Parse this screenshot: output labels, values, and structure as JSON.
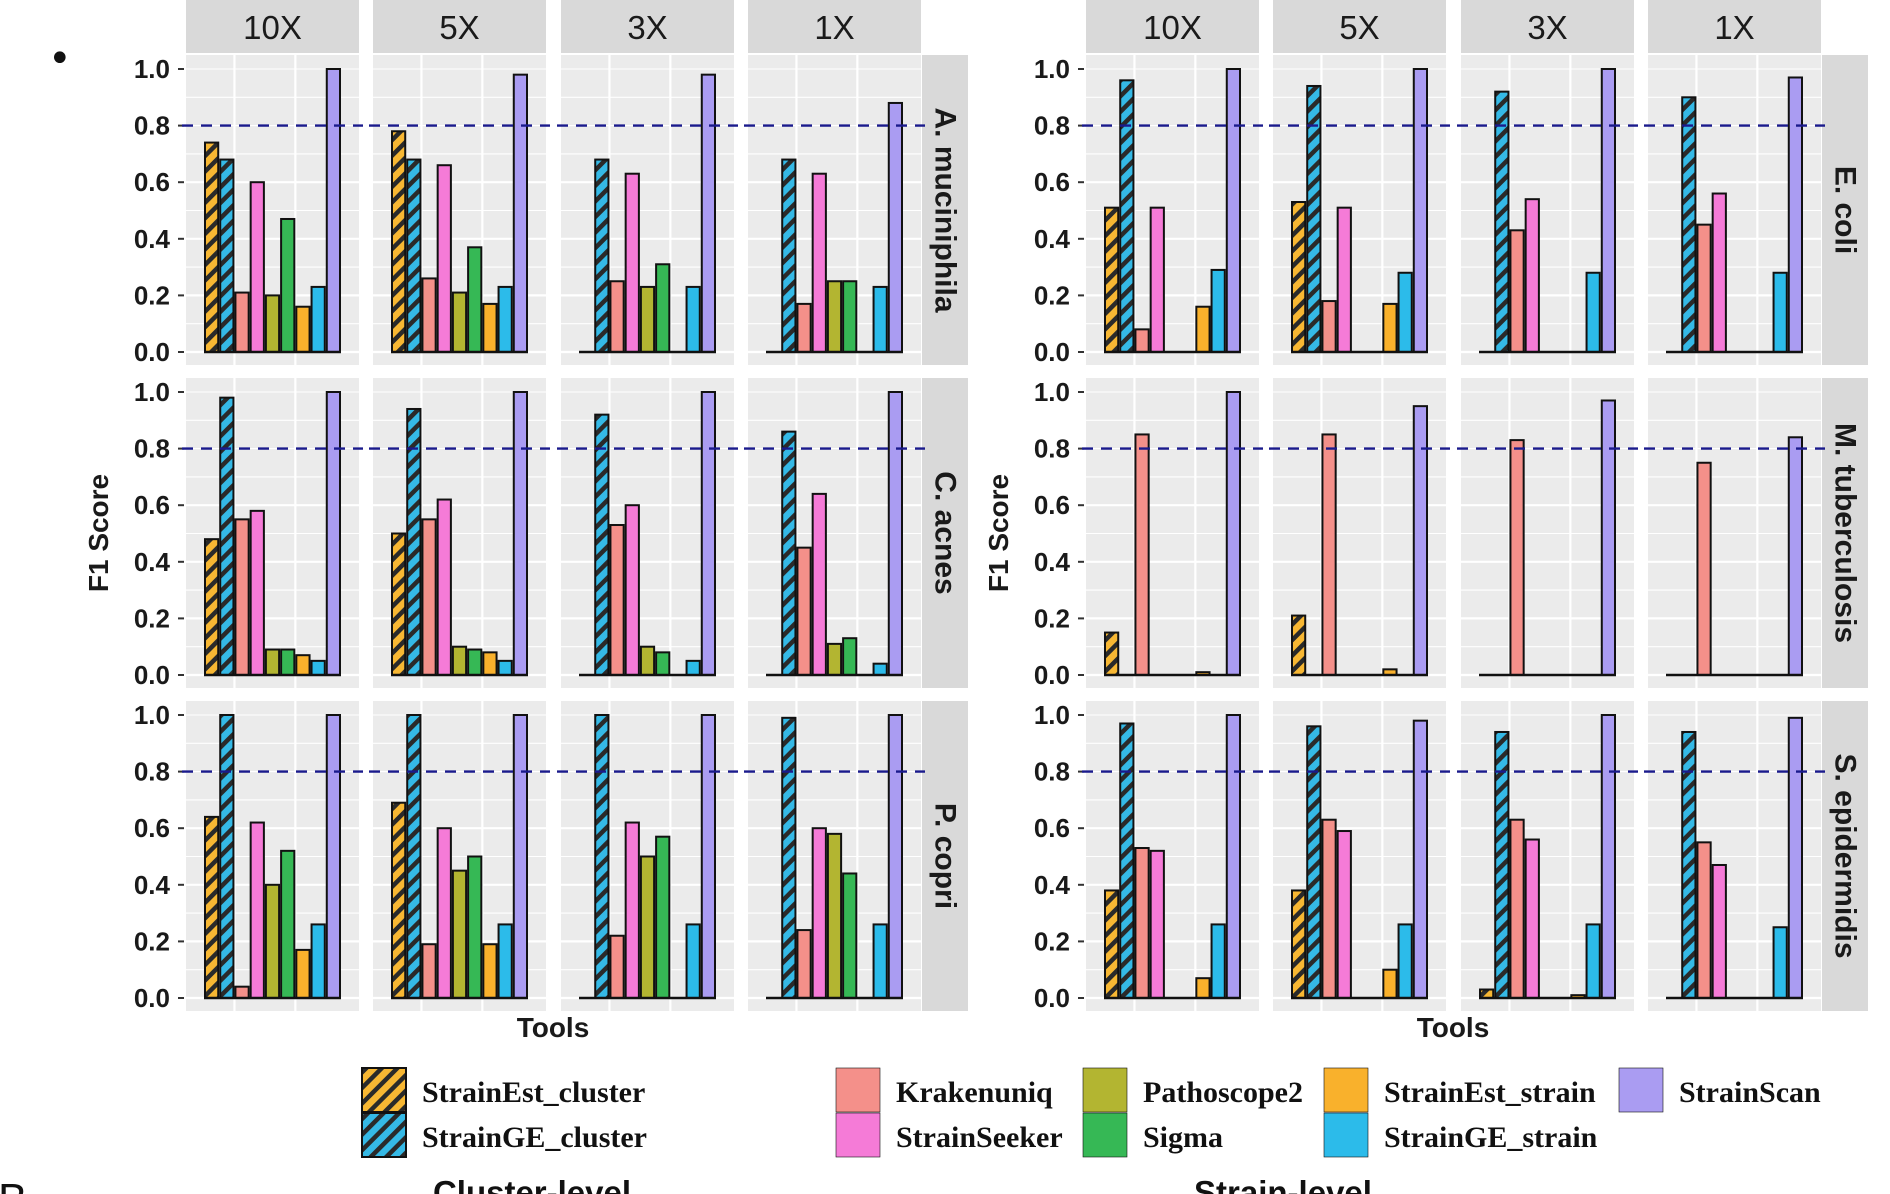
{
  "page": {
    "bullet": "•",
    "panel_label": "B",
    "section_labels": [
      "Cluster-level",
      "Strain-level"
    ]
  },
  "colors": {
    "panel_bg": "#ebebeb",
    "strip_bg": "#d9d9d9",
    "grid": "#ffffff",
    "threshold": "#1a1a8c"
  },
  "chart_data": [
    {
      "type": "bar",
      "id": "cluster-level",
      "level_label": "Cluster-level",
      "ylabel": "F1 Score",
      "xlabel": "Tools",
      "ylim": [
        0,
        1
      ],
      "yticks": [
        "0.0",
        "0.2",
        "0.4",
        "0.6",
        "0.8",
        "1.0"
      ],
      "threshold": 0.8,
      "coverages": [
        "10X",
        "5X",
        "3X",
        "1X"
      ],
      "species": [
        "A. muciniphila",
        "C. acnes",
        "P. copri"
      ],
      "tools": [
        "StrainEst_cluster",
        "StrainGE_cluster",
        "Krakenuniq",
        "StrainSeeker",
        "Pathoscope2",
        "Sigma",
        "StrainEst_strain",
        "StrainGE_strain",
        "StrainScan"
      ],
      "values": [
        [
          [
            0.74,
            0.68,
            0.21,
            0.6,
            0.2,
            0.47,
            0.16,
            0.23,
            1.0
          ],
          [
            0.78,
            0.68,
            0.26,
            0.66,
            0.21,
            0.37,
            0.17,
            0.23,
            0.98
          ],
          [
            0.0,
            0.68,
            0.25,
            0.63,
            0.23,
            0.31,
            0.0,
            0.23,
            0.98
          ],
          [
            0.0,
            0.68,
            0.17,
            0.63,
            0.25,
            0.25,
            0.0,
            0.23,
            0.88
          ]
        ],
        [
          [
            0.48,
            0.98,
            0.55,
            0.58,
            0.09,
            0.09,
            0.07,
            0.05,
            1.0
          ],
          [
            0.5,
            0.94,
            0.55,
            0.62,
            0.1,
            0.09,
            0.08,
            0.05,
            1.0
          ],
          [
            0.0,
            0.92,
            0.53,
            0.6,
            0.1,
            0.08,
            0.0,
            0.05,
            1.0
          ],
          [
            0.0,
            0.86,
            0.45,
            0.64,
            0.11,
            0.13,
            0.0,
            0.04,
            1.0
          ]
        ],
        [
          [
            0.64,
            1.0,
            0.04,
            0.62,
            0.4,
            0.52,
            0.17,
            0.26,
            1.0
          ],
          [
            0.69,
            1.0,
            0.19,
            0.6,
            0.45,
            0.5,
            0.19,
            0.26,
            1.0
          ],
          [
            0.0,
            1.0,
            0.22,
            0.62,
            0.5,
            0.57,
            0.0,
            0.26,
            1.0
          ],
          [
            0.0,
            0.99,
            0.24,
            0.6,
            0.58,
            0.44,
            0.0,
            0.26,
            1.0
          ]
        ]
      ]
    },
    {
      "type": "bar",
      "id": "strain-level",
      "level_label": "Strain-level",
      "ylabel": "F1 Score",
      "xlabel": "Tools",
      "ylim": [
        0,
        1
      ],
      "yticks": [
        "0.0",
        "0.2",
        "0.4",
        "0.6",
        "0.8",
        "1.0"
      ],
      "threshold": 0.8,
      "coverages": [
        "10X",
        "5X",
        "3X",
        "1X"
      ],
      "species": [
        "E. coli",
        "M. tuberculosis",
        "S. epidermidis"
      ],
      "tools": [
        "StrainEst_cluster",
        "StrainGE_cluster",
        "Krakenuniq",
        "StrainSeeker",
        "Pathoscope2",
        "Sigma",
        "StrainEst_strain",
        "StrainGE_strain",
        "StrainScan"
      ],
      "values": [
        [
          [
            0.51,
            0.96,
            0.08,
            0.51,
            0.0,
            0.0,
            0.16,
            0.29,
            1.0
          ],
          [
            0.53,
            0.94,
            0.18,
            0.51,
            0.0,
            0.0,
            0.17,
            0.28,
            1.0
          ],
          [
            0.0,
            0.92,
            0.43,
            0.54,
            0.0,
            0.0,
            0.0,
            0.28,
            1.0
          ],
          [
            0.0,
            0.9,
            0.45,
            0.56,
            0.0,
            0.0,
            0.0,
            0.28,
            0.97
          ]
        ],
        [
          [
            0.15,
            0.0,
            0.85,
            0.0,
            0.0,
            0.0,
            0.01,
            0.0,
            1.0
          ],
          [
            0.21,
            0.0,
            0.85,
            0.0,
            0.0,
            0.0,
            0.02,
            0.0,
            0.95
          ],
          [
            0.0,
            0.0,
            0.83,
            0.0,
            0.0,
            0.0,
            0.0,
            0.0,
            0.97
          ],
          [
            0.0,
            0.0,
            0.75,
            0.0,
            0.0,
            0.0,
            0.0,
            0.0,
            0.84
          ]
        ],
        [
          [
            0.38,
            0.97,
            0.53,
            0.52,
            0.0,
            0.0,
            0.07,
            0.26,
            1.0
          ],
          [
            0.38,
            0.96,
            0.63,
            0.59,
            0.0,
            0.0,
            0.1,
            0.26,
            0.98
          ],
          [
            0.03,
            0.94,
            0.63,
            0.56,
            0.0,
            0.0,
            0.01,
            0.26,
            1.0
          ],
          [
            0.0,
            0.94,
            0.55,
            0.47,
            0.0,
            0.0,
            0.0,
            0.25,
            0.99
          ]
        ]
      ]
    }
  ],
  "legend": {
    "items": [
      {
        "label": "StrainEst_cluster",
        "color": "#f7b733",
        "hatched": true
      },
      {
        "label": "StrainGE_cluster",
        "color": "#35b9e6",
        "hatched": true
      },
      {
        "label": "Krakenuniq",
        "color": "#f4908a",
        "hatched": false
      },
      {
        "label": "StrainSeeker",
        "color": "#f57bd7",
        "hatched": false
      },
      {
        "label": "Pathoscope2",
        "color": "#b3b531",
        "hatched": false
      },
      {
        "label": "Sigma",
        "color": "#36b855",
        "hatched": false
      },
      {
        "label": "StrainEst_strain",
        "color": "#f9b12c",
        "hatched": false
      },
      {
        "label": "StrainGE_strain",
        "color": "#2cbbea",
        "hatched": false
      },
      {
        "label": "StrainScan",
        "color": "#aa9cf2",
        "hatched": false
      }
    ]
  }
}
